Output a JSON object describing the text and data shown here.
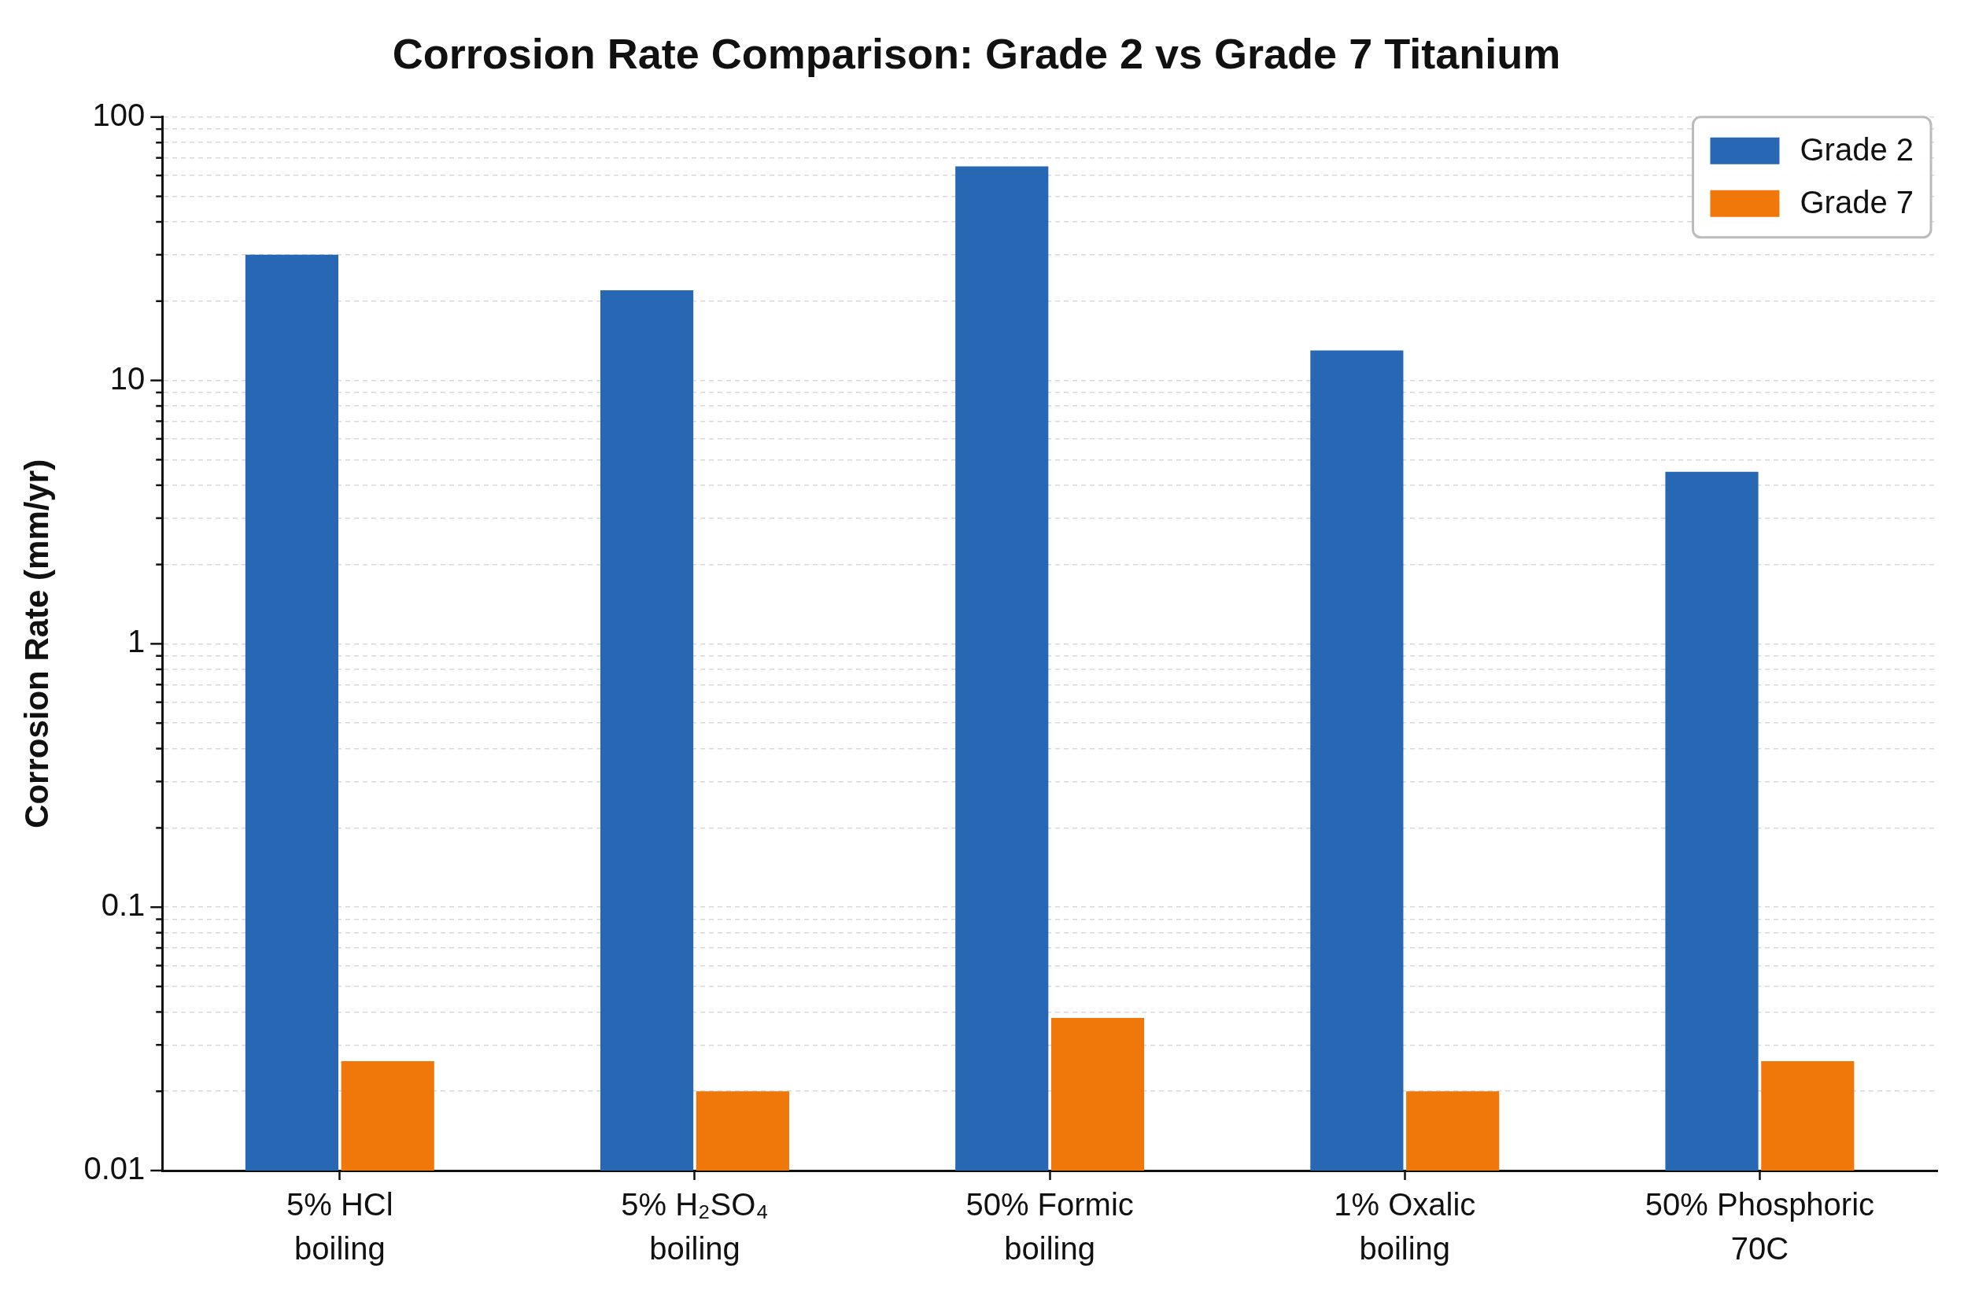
{
  "chart_data": {
    "type": "bar",
    "title": "Corrosion Rate Comparison: Grade 2 vs Grade 7 Titanium",
    "ylabel": "Corrosion Rate (mm/yr)",
    "categories": [
      "5% HCl\nboiling",
      "5% H₂SO₄\nboiling",
      "50% Formic\nboiling",
      "1% Oxalic\nboiling",
      "50% Phosphoric\n70C"
    ],
    "series": [
      {
        "name": "Grade 2",
        "color": "#2767b4",
        "values": [
          30,
          22,
          65,
          13,
          4.5
        ]
      },
      {
        "name": "Grade 7",
        "color": "#f0780a",
        "values": [
          0.026,
          0.02,
          0.038,
          0.02,
          0.026
        ]
      }
    ],
    "log": true,
    "ylim": [
      0.01,
      100
    ],
    "yticks": [
      0.01,
      {
        "value": 0.02,
        "label": null
      },
      {
        "value": 0.03,
        "label": null
      },
      {
        "value": 0.04,
        "label": null
      },
      {
        "value": 0.05,
        "label": null
      },
      {
        "value": 0.06,
        "label": null
      },
      {
        "value": 0.07,
        "label": null
      },
      {
        "value": 0.08,
        "label": null
      },
      {
        "value": 0.09,
        "label": null
      },
      0.1,
      {
        "value": 0.2,
        "label": null
      },
      {
        "value": 0.3,
        "label": null
      },
      {
        "value": 0.4,
        "label": null
      },
      {
        "value": 0.5,
        "label": null
      },
      {
        "value": 0.6,
        "label": null
      },
      {
        "value": 0.7,
        "label": null
      },
      {
        "value": 0.8,
        "label": null
      },
      {
        "value": 0.9,
        "label": null
      },
      1,
      {
        "value": 2,
        "label": null
      },
      {
        "value": 3,
        "label": null
      },
      {
        "value": 4,
        "label": null
      },
      {
        "value": 5,
        "label": null
      },
      {
        "value": 6,
        "label": null
      },
      {
        "value": 7,
        "label": null
      },
      {
        "value": 8,
        "label": null
      },
      {
        "value": 9,
        "label": null
      },
      10,
      {
        "value": 20,
        "label": null
      },
      {
        "value": 30,
        "label": null
      },
      {
        "value": 40,
        "label": null
      },
      {
        "value": 50,
        "label": null
      },
      {
        "value": 60,
        "label": null
      },
      {
        "value": 70,
        "label": null
      },
      {
        "value": 80,
        "label": null
      },
      {
        "value": 90,
        "label": null
      },
      100
    ],
    "grid": "y",
    "legend": "top right"
  }
}
